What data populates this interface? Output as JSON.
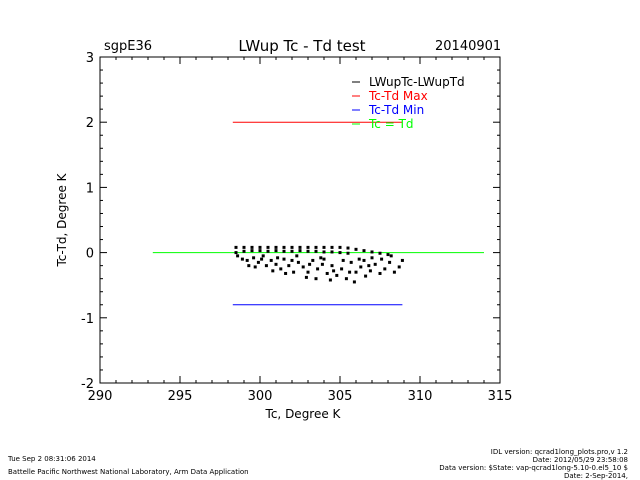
{
  "header": {
    "site": "sgpE36",
    "title": "LWup Tc - Td test",
    "date": "20140901"
  },
  "footer": {
    "timestamp": "Tue Sep  2 08:31:06 2014",
    "lab": "Battelle Pacific Northwest National Laboratory, Arm Data Application",
    "idl_version": "IDL version: qcrad1long_plots.pro,v 1.2",
    "file_date": "Date: 2012/05/29 23:58:08",
    "data_version": "Data version: $State: vap-qcrad1long-5.10-0.el5_10 $",
    "run_date": "Date: 2-Sep-2014,"
  },
  "chart_data": {
    "type": "scatter",
    "xlabel": "Tc, Degree K",
    "ylabel": "Tc-Td, Degree K",
    "xlim": [
      290,
      315
    ],
    "ylim": [
      -2,
      3
    ],
    "xticks": [
      "290",
      "295",
      "300",
      "305",
      "310",
      "315"
    ],
    "yticks": [
      "-2",
      "-1",
      "0",
      "1",
      "2",
      "3"
    ],
    "grid": false,
    "legend_position": "top-right",
    "legend": [
      {
        "label": "LWupTc-LWupTd",
        "color": "#000000"
      },
      {
        "label": "Tc-Td Max",
        "color": "#ff0000"
      },
      {
        "label": "Tc-Td Min",
        "color": "#0000ff"
      },
      {
        "label": "Tc = Td",
        "color": "#00ff00"
      }
    ],
    "lines": [
      {
        "name": "Tc-Td Max",
        "color": "#ff0000",
        "x": [
          298.3,
          308.9
        ],
        "y": [
          2,
          2
        ]
      },
      {
        "name": "Tc-Td Min",
        "color": "#0000ff",
        "x": [
          298.3,
          308.9
        ],
        "y": [
          -0.8,
          -0.8
        ]
      },
      {
        "name": "Tc = Td",
        "color": "#00ff00",
        "x": [
          293.3,
          314.0
        ],
        "y": [
          0,
          0
        ]
      }
    ],
    "series": [
      {
        "name": "LWupTc-LWupTd",
        "color": "#000000",
        "points": [
          [
            298.5,
            0.08
          ],
          [
            299.0,
            0.08
          ],
          [
            299.5,
            0.08
          ],
          [
            300.0,
            0.08
          ],
          [
            300.5,
            0.08
          ],
          [
            301.0,
            0.08
          ],
          [
            301.5,
            0.08
          ],
          [
            302.0,
            0.08
          ],
          [
            302.5,
            0.08
          ],
          [
            303.0,
            0.08
          ],
          [
            303.5,
            0.08
          ],
          [
            304.0,
            0.08
          ],
          [
            304.5,
            0.08
          ],
          [
            305.0,
            0.08
          ],
          [
            305.5,
            0.07
          ],
          [
            306.0,
            0.05
          ],
          [
            306.5,
            0.03
          ],
          [
            307.0,
            0.01
          ],
          [
            307.5,
            -0.01
          ],
          [
            308.0,
            -0.03
          ],
          [
            298.5,
            0.0
          ],
          [
            299.0,
            0.02
          ],
          [
            299.5,
            0.03
          ],
          [
            300.0,
            0.03
          ],
          [
            300.5,
            0.02
          ],
          [
            301.0,
            0.03
          ],
          [
            301.5,
            0.02
          ],
          [
            302.0,
            0.02
          ],
          [
            302.5,
            0.03
          ],
          [
            303.0,
            0.02
          ],
          [
            303.5,
            0.02
          ],
          [
            304.0,
            0.01
          ],
          [
            304.5,
            0.01
          ],
          [
            305.0,
            0.0
          ],
          [
            305.5,
            -0.01
          ],
          [
            298.6,
            -0.05
          ],
          [
            298.9,
            -0.1
          ],
          [
            299.2,
            -0.12
          ],
          [
            299.6,
            -0.08
          ],
          [
            299.9,
            -0.15
          ],
          [
            300.1,
            -0.1
          ],
          [
            300.4,
            -0.2
          ],
          [
            300.7,
            -0.12
          ],
          [
            301.0,
            -0.18
          ],
          [
            301.3,
            -0.25
          ],
          [
            301.5,
            -0.1
          ],
          [
            301.8,
            -0.2
          ],
          [
            302.1,
            -0.3
          ],
          [
            302.4,
            -0.15
          ],
          [
            302.7,
            -0.22
          ],
          [
            303.0,
            -0.3
          ],
          [
            303.3,
            -0.12
          ],
          [
            303.6,
            -0.25
          ],
          [
            303.9,
            -0.18
          ],
          [
            304.2,
            -0.32
          ],
          [
            304.5,
            -0.2
          ],
          [
            304.8,
            -0.35
          ],
          [
            305.1,
            -0.25
          ],
          [
            305.4,
            -0.4
          ],
          [
            305.7,
            -0.15
          ],
          [
            306.0,
            -0.3
          ],
          [
            306.3,
            -0.22
          ],
          [
            306.6,
            -0.36
          ],
          [
            306.9,
            -0.28
          ],
          [
            307.2,
            -0.18
          ],
          [
            307.5,
            -0.32
          ],
          [
            307.8,
            -0.25
          ],
          [
            308.1,
            -0.15
          ],
          [
            308.4,
            -0.3
          ],
          [
            308.7,
            -0.22
          ],
          [
            299.3,
            -0.2
          ],
          [
            300.2,
            -0.05
          ],
          [
            301.1,
            -0.08
          ],
          [
            302.3,
            -0.05
          ],
          [
            303.8,
            -0.08
          ],
          [
            305.2,
            -0.12
          ],
          [
            306.2,
            -0.1
          ],
          [
            307.0,
            -0.08
          ],
          [
            308.2,
            -0.05
          ],
          [
            308.9,
            -0.12
          ],
          [
            303.5,
            -0.4
          ],
          [
            304.6,
            -0.28
          ],
          [
            305.9,
            -0.45
          ],
          [
            306.8,
            -0.2
          ],
          [
            307.6,
            -0.1
          ],
          [
            300.8,
            -0.28
          ],
          [
            302.0,
            -0.12
          ],
          [
            302.9,
            -0.38
          ],
          [
            304.0,
            -0.1
          ],
          [
            305.6,
            -0.3
          ],
          [
            299.7,
            -0.22
          ],
          [
            301.6,
            -0.32
          ],
          [
            303.1,
            -0.18
          ],
          [
            304.4,
            -0.42
          ],
          [
            306.5,
            -0.12
          ]
        ]
      }
    ]
  }
}
